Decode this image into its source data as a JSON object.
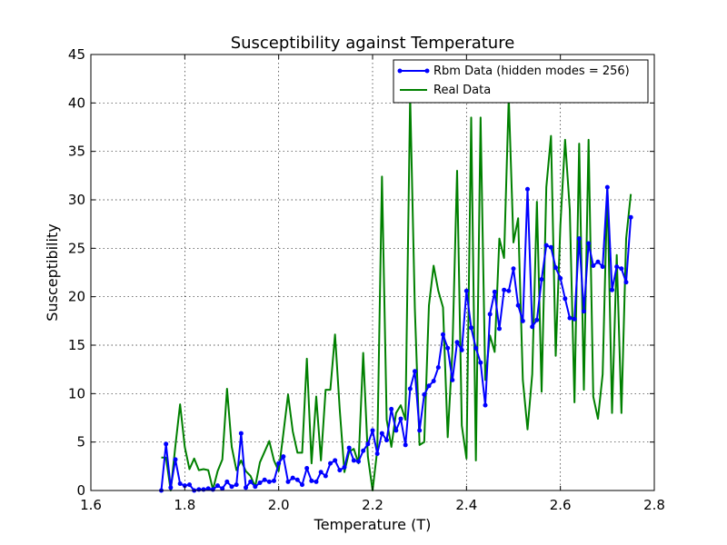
{
  "chart_data": {
    "type": "line",
    "title": "Susceptibility against Temperature",
    "xlabel": "Temperature (T)",
    "ylabel": "Susceptibility",
    "xlim": [
      1.6,
      2.8
    ],
    "ylim": [
      0,
      45
    ],
    "xticks": [
      "1.6",
      "1.8",
      "2.0",
      "2.2",
      "2.4",
      "2.6",
      "2.8"
    ],
    "yticks": [
      "0",
      "5",
      "10",
      "15",
      "20",
      "25",
      "30",
      "35",
      "40",
      "45"
    ],
    "grid": true,
    "legend_position": "top-right",
    "series": [
      {
        "name": "Rbm Data (hidden modes = 256)",
        "color": "#0000ff",
        "marker": "dot",
        "x": [
          1.75,
          1.76,
          1.77,
          1.78,
          1.79,
          1.8,
          1.81,
          1.82,
          1.83,
          1.84,
          1.85,
          1.86,
          1.87,
          1.88,
          1.89,
          1.9,
          1.91,
          1.92,
          1.93,
          1.94,
          1.95,
          1.96,
          1.97,
          1.98,
          1.99,
          2.0,
          2.01,
          2.02,
          2.03,
          2.04,
          2.05,
          2.06,
          2.07,
          2.08,
          2.09,
          2.1,
          2.11,
          2.12,
          2.13,
          2.14,
          2.15,
          2.16,
          2.17,
          2.18,
          2.19,
          2.2,
          2.21,
          2.22,
          2.23,
          2.24,
          2.25,
          2.26,
          2.27,
          2.28,
          2.29,
          2.3,
          2.31,
          2.32,
          2.33,
          2.34,
          2.35,
          2.36,
          2.37,
          2.38,
          2.39,
          2.4,
          2.41,
          2.42,
          2.43,
          2.44,
          2.45,
          2.46,
          2.47,
          2.48,
          2.49,
          2.5,
          2.51,
          2.52,
          2.53,
          2.54,
          2.55,
          2.56,
          2.57,
          2.58,
          2.59,
          2.6,
          2.61,
          2.62,
          2.63,
          2.64,
          2.65,
          2.66,
          2.67,
          2.68,
          2.69,
          2.7,
          2.71,
          2.72,
          2.73,
          2.74,
          2.75
        ],
        "y": [
          0.0,
          4.8,
          0.3,
          3.2,
          0.7,
          0.5,
          0.6,
          0.0,
          0.1,
          0.1,
          0.2,
          0.1,
          0.5,
          0.2,
          0.9,
          0.4,
          0.6,
          5.9,
          0.3,
          0.9,
          0.4,
          0.8,
          1.1,
          0.9,
          1.0,
          2.8,
          3.5,
          0.9,
          1.3,
          1.1,
          0.6,
          2.3,
          1.0,
          0.9,
          1.9,
          1.5,
          2.8,
          3.1,
          2.1,
          2.4,
          4.4,
          3.1,
          3.0,
          4.1,
          4.8,
          6.2,
          3.8,
          5.9,
          5.2,
          8.4,
          6.2,
          7.4,
          4.7,
          10.5,
          12.3,
          6.2,
          9.9,
          10.8,
          11.3,
          12.7,
          16.1,
          14.7,
          11.4,
          15.3,
          14.5,
          20.6,
          16.8,
          14.7,
          13.2,
          8.8,
          18.2,
          20.5,
          16.7,
          20.7,
          20.6,
          22.9,
          19.1,
          17.5,
          31.1,
          16.9,
          17.6,
          21.8,
          25.3,
          25.1,
          23.0,
          21.9,
          19.8,
          17.8,
          17.7,
          26.0,
          18.5,
          25.5,
          23.2,
          23.6,
          23.1,
          31.3,
          20.7,
          23.1,
          22.9,
          21.5,
          28.2
        ]
      },
      {
        "name": "Real Data",
        "color": "#008000",
        "marker": "none",
        "x": [
          1.75,
          1.76,
          1.77,
          1.78,
          1.79,
          1.8,
          1.81,
          1.82,
          1.83,
          1.84,
          1.85,
          1.86,
          1.87,
          1.88,
          1.89,
          1.9,
          1.91,
          1.92,
          1.93,
          1.94,
          1.95,
          1.96,
          1.97,
          1.98,
          1.99,
          2.0,
          2.01,
          2.02,
          2.03,
          2.04,
          2.05,
          2.06,
          2.07,
          2.08,
          2.09,
          2.1,
          2.11,
          2.12,
          2.13,
          2.14,
          2.15,
          2.16,
          2.17,
          2.18,
          2.19,
          2.2,
          2.21,
          2.22,
          2.23,
          2.24,
          2.25,
          2.26,
          2.27,
          2.28,
          2.29,
          2.3,
          2.31,
          2.32,
          2.33,
          2.34,
          2.35,
          2.36,
          2.37,
          2.38,
          2.39,
          2.4,
          2.41,
          2.42,
          2.43,
          2.44,
          2.45,
          2.46,
          2.47,
          2.48,
          2.49,
          2.5,
          2.51,
          2.52,
          2.53,
          2.54,
          2.55,
          2.56,
          2.57,
          2.58,
          2.59,
          2.6,
          2.61,
          2.62,
          2.63,
          2.64,
          2.65,
          2.66,
          2.67,
          2.68,
          2.69,
          2.7,
          2.71,
          2.72,
          2.73,
          2.74,
          2.75
        ],
        "y": [
          3.4,
          3.4,
          0.0,
          4.6,
          8.9,
          4.5,
          2.2,
          3.3,
          2.1,
          2.2,
          2.1,
          0.1,
          2.0,
          3.2,
          10.5,
          4.5,
          2.1,
          3.1,
          2.0,
          1.5,
          0.4,
          2.9,
          4.0,
          5.1,
          3.1,
          2.0,
          5.9,
          9.9,
          6.1,
          3.9,
          3.9,
          13.6,
          2.8,
          9.7,
          3.1,
          10.4,
          10.4,
          16.1,
          8.4,
          1.9,
          4.0,
          4.3,
          2.8,
          14.2,
          3.5,
          0.0,
          4.2,
          32.4,
          7.3,
          4.5,
          8.0,
          8.8,
          7.3,
          40.7,
          18.8,
          4.7,
          5.0,
          19.1,
          23.2,
          20.6,
          18.9,
          5.5,
          14.4,
          33.0,
          6.7,
          3.3,
          38.5,
          3.1,
          38.5,
          11.4,
          16.0,
          14.3,
          26.0,
          24.0,
          40.6,
          25.6,
          28.1,
          11.4,
          6.3,
          12.0,
          29.8,
          10.2,
          31.3,
          36.6,
          13.9,
          27.4,
          36.2,
          29.0,
          9.1,
          35.8,
          10.4,
          36.2,
          9.7,
          7.4,
          12.0,
          31.4,
          8.0,
          24.3,
          8.0,
          26.0,
          30.6
        ]
      }
    ]
  }
}
